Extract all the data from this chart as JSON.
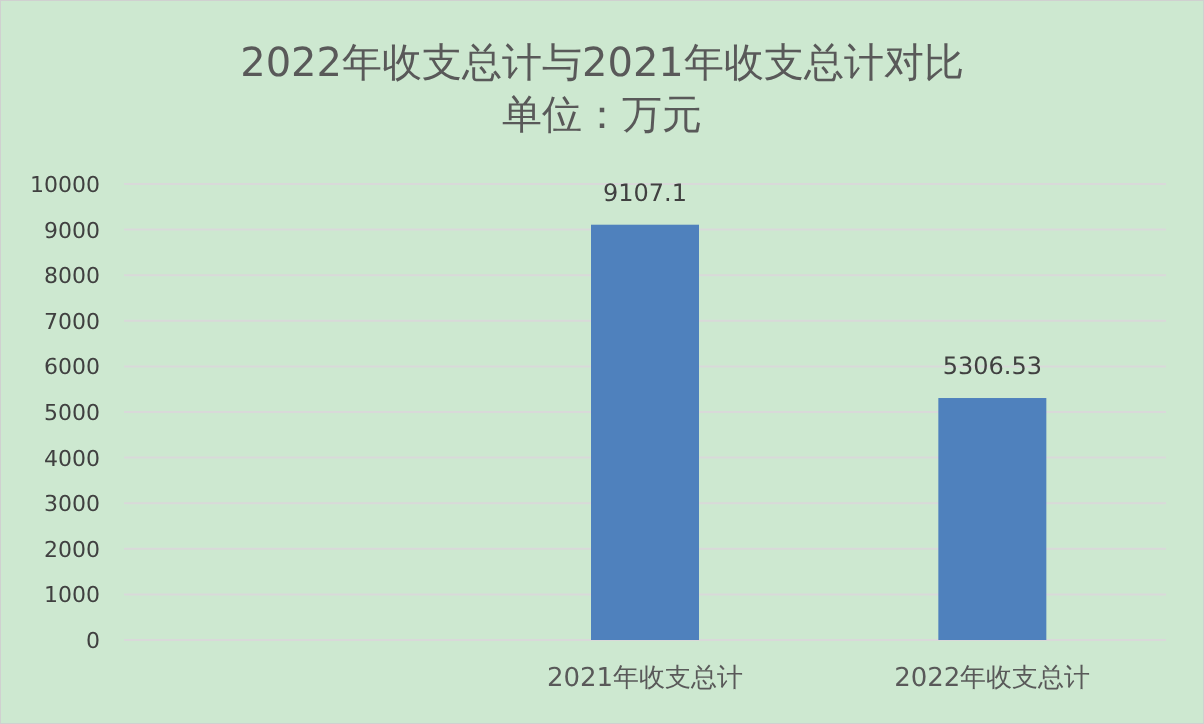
{
  "chart_data": {
    "type": "bar",
    "title": "2022年收支总计与2021年收支总计对比",
    "subtitle": "单位：万元",
    "categories": [
      null,
      "2021年收支总计",
      "2022年收支总计"
    ],
    "values": [
      null,
      9107.1,
      5306.53
    ],
    "color": "#4f81bd",
    "data_labels": true,
    "grid": "y",
    "ylim": [
      0,
      10000
    ],
    "yticks": [
      0,
      1000,
      2000,
      3000,
      4000,
      5000,
      6000,
      7000,
      8000,
      9000,
      10000
    ]
  }
}
